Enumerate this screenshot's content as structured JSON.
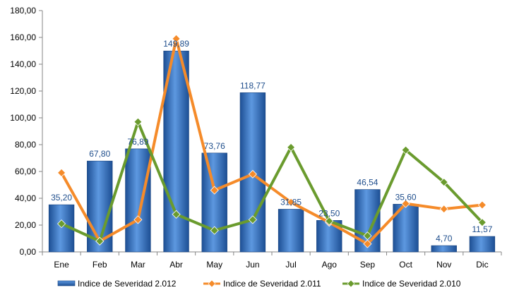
{
  "chart_data": {
    "type": "bar",
    "categories": [
      "Ene",
      "Feb",
      "Mar",
      "Abr",
      "May",
      "Jun",
      "Jul",
      "Ago",
      "Sep",
      "Oct",
      "Nov",
      "Dic"
    ],
    "ylim": [
      0,
      180
    ],
    "y_ticks": [
      "0,00",
      "20,00",
      "40,00",
      "60,00",
      "80,00",
      "100,00",
      "120,00",
      "140,00",
      "160,00",
      "180,00"
    ],
    "y_tick_values": [
      0,
      20,
      40,
      60,
      80,
      100,
      120,
      140,
      160,
      180
    ],
    "title": "",
    "xlabel": "",
    "ylabel": "",
    "legend_position": "bottom",
    "series": [
      {
        "name": "Indice de Severidad 2.012",
        "kind": "bar",
        "color": "#2f6fc0",
        "values": [
          35.2,
          67.8,
          76.89,
          149.89,
          73.76,
          118.77,
          31.85,
          23.5,
          46.54,
          35.6,
          4.7,
          11.57
        ],
        "labels": [
          "35,20",
          "67,80",
          "76,89",
          "149,89",
          "73,76",
          "118,77",
          "31,85",
          "23,50",
          "46,54",
          "35,60",
          "4,70",
          "11,57"
        ]
      },
      {
        "name": "Indice de Severidad 2.011",
        "kind": "line",
        "color": "#f58b2a",
        "values": [
          59,
          8,
          24,
          159,
          46,
          58,
          37,
          22,
          6,
          36,
          32,
          35
        ]
      },
      {
        "name": "Indice de Severidad 2.010",
        "kind": "line",
        "color": "#6a9b2e",
        "values": [
          21,
          8,
          97,
          28,
          16,
          24,
          78,
          23,
          12,
          76,
          52,
          22
        ]
      }
    ]
  }
}
